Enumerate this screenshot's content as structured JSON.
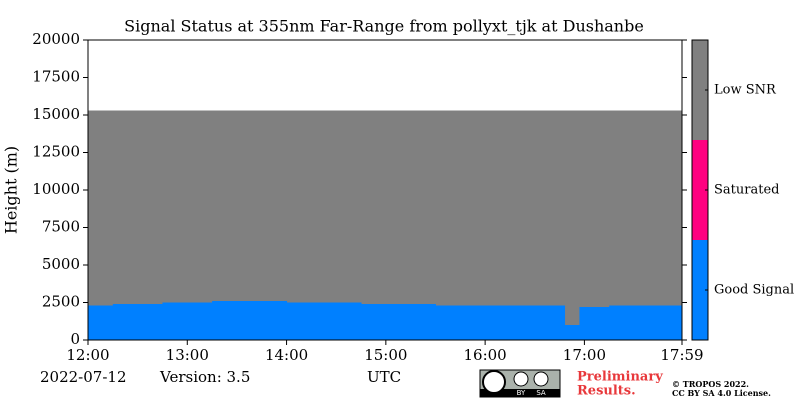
{
  "chart_data": {
    "type": "status",
    "title": "Signal Status at 355nm Far-Range from pollyxt_tjk at Dushanbe",
    "ylabel": "Height (m)",
    "xlabel": "UTC",
    "date": "2022-07-12",
    "version": "Version: 3.5",
    "notice": [
      "Preliminary",
      "Results."
    ],
    "license": [
      "© TROPOS 2022.",
      "CC BY SA 4.0 License."
    ],
    "badge": {
      "left": "BY",
      "right": "SA"
    },
    "xlim": [
      12,
      17.983
    ],
    "xticks": [
      {
        "value": 12,
        "label": "12:00"
      },
      {
        "value": 13,
        "label": "13:00"
      },
      {
        "value": 14,
        "label": "14:00"
      },
      {
        "value": 15,
        "label": "15:00"
      },
      {
        "value": 16,
        "label": "16:00"
      },
      {
        "value": 17,
        "label": "17:00"
      },
      {
        "value": 17.983,
        "label": "17:59"
      }
    ],
    "ylim": [
      0,
      20000
    ],
    "yticks": [
      0,
      2500,
      5000,
      7500,
      10000,
      12500,
      15000,
      17500,
      20000
    ],
    "signal_top": 15300,
    "x": [
      12,
      12.25,
      12.5,
      12.75,
      13,
      13.25,
      13.5,
      13.75,
      14,
      14.25,
      14.5,
      14.75,
      15,
      15.25,
      15.5,
      15.75,
      16,
      16.25,
      16.5,
      16.8,
      16.95,
      17.25,
      17.5,
      17.75
    ],
    "series": [
      {
        "name": "Good Signal",
        "values": [
          2300,
          2400,
          2400,
          2500,
          2500,
          2600,
          2600,
          2600,
          2500,
          2500,
          2500,
          2400,
          2400,
          2400,
          2300,
          2300,
          2300,
          2300,
          2300,
          1000,
          2200,
          2300,
          2300,
          2300
        ]
      }
    ],
    "colorbar": {
      "labels": [
        "Good Signal",
        "Saturated",
        "Low SNR"
      ],
      "colors": [
        "#0080ff",
        "#ff0080",
        "#808080"
      ]
    }
  }
}
